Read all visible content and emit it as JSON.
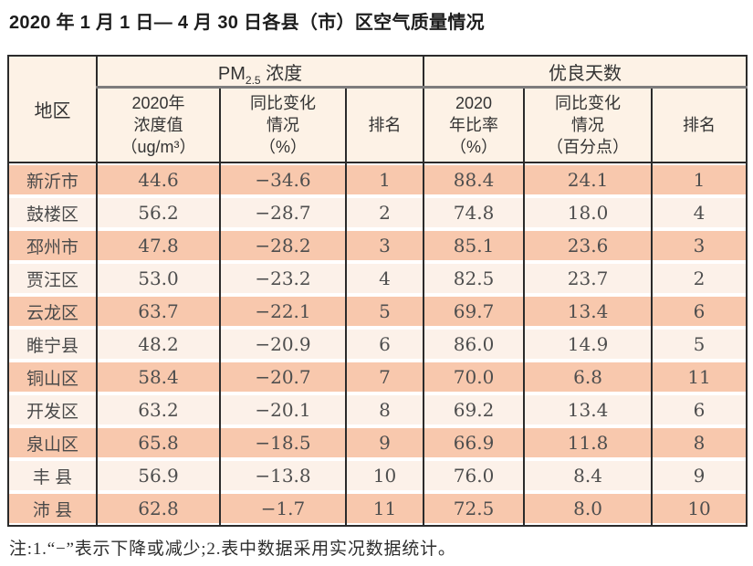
{
  "title": "2020 年 1 月 1 日— 4 月 30 日各县（市）区空气质量情况",
  "colors": {
    "row_salmon": "#f8c8ad",
    "row_light": "#fcf1e9",
    "header_bg": "#fdf2e6",
    "border_dark": "#2b2b2b",
    "group_rule_gray": "#7d7d7d"
  },
  "table": {
    "region_header": "地区",
    "pm_group": {
      "prefix": "PM",
      "sub": "2.5",
      "suffix": " 浓度"
    },
    "good_days_group": "优良天数",
    "subheaders": [
      "2020年\n浓度值\n（ug/m³）",
      "同比变化\n情况\n（%）",
      "排名",
      "2020\n年比率\n（%）",
      "同比变化\n情况\n（百分点）",
      "排名"
    ],
    "rows": [
      [
        "新沂市",
        "44.6",
        "−34.6",
        "1",
        "88.4",
        "24.1",
        "1"
      ],
      [
        "鼓楼区",
        "56.2",
        "−28.7",
        "2",
        "74.8",
        "18.0",
        "4"
      ],
      [
        "邳州市",
        "47.8",
        "−28.2",
        "3",
        "85.1",
        "23.6",
        "3"
      ],
      [
        "贾汪区",
        "53.0",
        "−23.2",
        "4",
        "82.5",
        "23.7",
        "2"
      ],
      [
        "云龙区",
        "63.7",
        "−22.1",
        "5",
        "69.7",
        "13.4",
        "6"
      ],
      [
        "睢宁县",
        "48.2",
        "−20.9",
        "6",
        "86.0",
        "14.9",
        "5"
      ],
      [
        "铜山区",
        "58.4",
        "−20.7",
        "7",
        "70.0",
        "6.8",
        "11"
      ],
      [
        "开发区",
        "63.2",
        "−20.1",
        "8",
        "69.2",
        "13.4",
        "6"
      ],
      [
        "泉山区",
        "65.8",
        "−18.5",
        "9",
        "66.9",
        "11.8",
        "8"
      ],
      [
        "丰 县",
        "56.9",
        "−13.8",
        "10",
        "76.0",
        "8.4",
        "9"
      ],
      [
        "沛 县",
        "62.8",
        "−1.7",
        "11",
        "72.5",
        "8.0",
        "10"
      ]
    ]
  },
  "footnote": "注:1.“−”表示下降或减少;2.表中数据采用实况数据统计。"
}
